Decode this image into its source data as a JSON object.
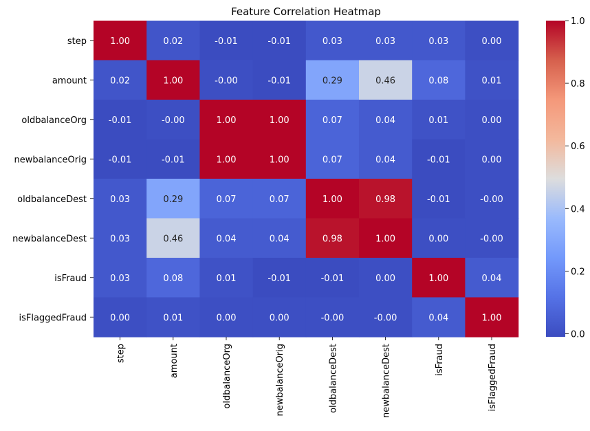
{
  "chart_data": {
    "type": "heatmap",
    "title": "Feature Correlation Heatmap",
    "xlabel": "",
    "ylabel": "",
    "colormap": "coolwarm",
    "vmin": -0.01,
    "vmax": 1.0,
    "rows": [
      "step",
      "amount",
      "oldbalanceOrg",
      "newbalanceOrig",
      "oldbalanceDest",
      "newbalanceDest",
      "isFraud",
      "isFlaggedFraud"
    ],
    "columns": [
      "step",
      "amount",
      "oldbalanceOrg",
      "newbalanceOrig",
      "oldbalanceDest",
      "newbalanceDest",
      "isFraud",
      "isFlaggedFraud"
    ],
    "values": [
      [
        1.0,
        0.02,
        -0.01,
        -0.01,
        0.03,
        0.03,
        0.03,
        0.0
      ],
      [
        0.02,
        1.0,
        -0.0,
        -0.01,
        0.29,
        0.46,
        0.08,
        0.01
      ],
      [
        -0.01,
        -0.0,
        1.0,
        1.0,
        0.07,
        0.04,
        0.01,
        0.0
      ],
      [
        -0.01,
        -0.01,
        1.0,
        1.0,
        0.07,
        0.04,
        -0.01,
        0.0
      ],
      [
        0.03,
        0.29,
        0.07,
        0.07,
        1.0,
        0.98,
        -0.01,
        -0.0
      ],
      [
        0.03,
        0.46,
        0.04,
        0.04,
        0.98,
        1.0,
        0.0,
        -0.0
      ],
      [
        0.03,
        0.08,
        0.01,
        -0.01,
        -0.01,
        0.0,
        1.0,
        0.04
      ],
      [
        0.0,
        0.01,
        0.0,
        0.0,
        -0.0,
        -0.0,
        0.04,
        1.0
      ]
    ],
    "labels": [
      [
        "1.00",
        "0.02",
        "-0.01",
        "-0.01",
        "0.03",
        "0.03",
        "0.03",
        "0.00"
      ],
      [
        "0.02",
        "1.00",
        "-0.00",
        "-0.01",
        "0.29",
        "0.46",
        "0.08",
        "0.01"
      ],
      [
        "-0.01",
        "-0.00",
        "1.00",
        "1.00",
        "0.07",
        "0.04",
        "0.01",
        "0.00"
      ],
      [
        "-0.01",
        "-0.01",
        "1.00",
        "1.00",
        "0.07",
        "0.04",
        "-0.01",
        "0.00"
      ],
      [
        "0.03",
        "0.29",
        "0.07",
        "0.07",
        "1.00",
        "0.98",
        "-0.01",
        "-0.00"
      ],
      [
        "0.03",
        "0.46",
        "0.04",
        "0.04",
        "0.98",
        "1.00",
        "0.00",
        "-0.00"
      ],
      [
        "0.03",
        "0.08",
        "0.01",
        "-0.01",
        "-0.01",
        "0.00",
        "1.00",
        "0.04"
      ],
      [
        "0.00",
        "0.01",
        "0.00",
        "0.00",
        "-0.00",
        "-0.00",
        "0.04",
        "1.00"
      ]
    ],
    "colorbar": {
      "ticks": [
        0.0,
        0.2,
        0.4,
        0.6,
        0.8,
        1.0
      ],
      "tick_labels": [
        "0.0",
        "0.2",
        "0.4",
        "0.6",
        "0.8",
        "1.0"
      ]
    }
  }
}
